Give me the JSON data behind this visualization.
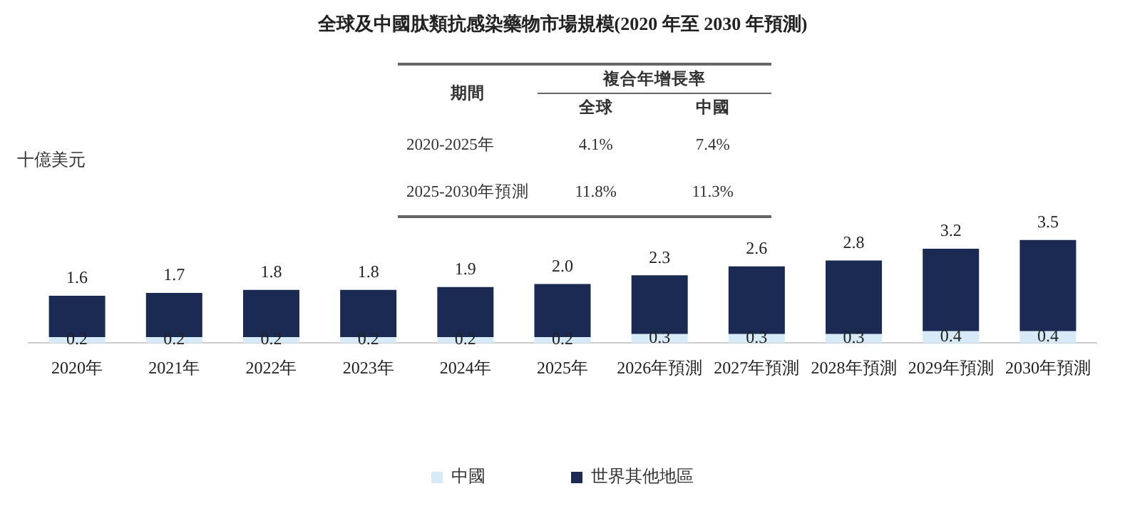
{
  "chart_data": {
    "type": "bar",
    "title": "全球及中國肽類抗感染藥物市場規模(2020 年至 2030 年預測)",
    "ylabel": "十億美元",
    "categories": [
      "2020年",
      "2021年",
      "2022年",
      "2023年",
      "2024年",
      "2025年",
      "2026年預測",
      "2027年預測",
      "2028年預測",
      "2029年預測",
      "2030年預測"
    ],
    "stacked": true,
    "series": [
      {
        "name": "中國",
        "color": "#d6ebf7",
        "values": [
          0.2,
          0.2,
          0.2,
          0.2,
          0.2,
          0.2,
          0.3,
          0.3,
          0.3,
          0.4,
          0.4
        ],
        "value_labels": [
          "0.2",
          "0.2",
          "0.2",
          "0.2",
          "0.2",
          "0.2",
          "0.3",
          "0.3",
          "0.3",
          "0.4",
          "0.4"
        ]
      },
      {
        "name": "世界其他地區",
        "color": "#1b2a52",
        "values": [
          1.4,
          1.5,
          1.6,
          1.6,
          1.7,
          1.8,
          2.0,
          2.3,
          2.5,
          2.8,
          3.1
        ]
      }
    ],
    "totals": [
      "1.6",
      "1.7",
      "1.8",
      "1.8",
      "1.9",
      "2.0",
      "2.3",
      "2.6",
      "2.8",
      "3.2",
      "3.5"
    ],
    "legend": "bottom",
    "annotations": [
      "期間",
      "複合年增長率",
      "全球",
      "中國",
      "2020-2025年",
      "4.1%",
      "7.4%",
      "2025-2030年預測",
      "11.8%",
      "11.3%"
    ]
  }
}
